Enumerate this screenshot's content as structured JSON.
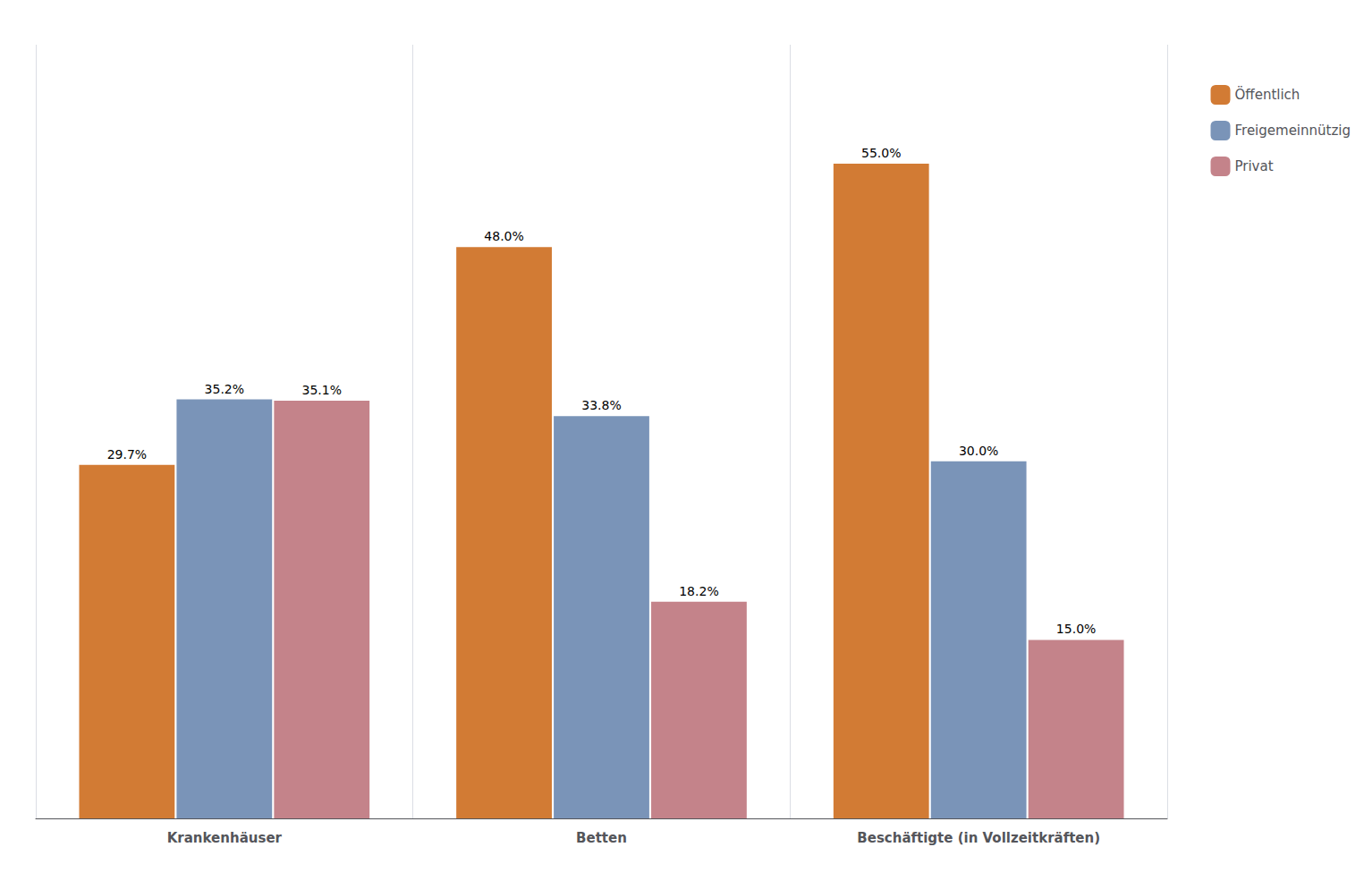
{
  "chart_data": {
    "type": "bar",
    "categories": [
      "Krankenhäuser",
      "Betten",
      "Beschäftigte (in Vollzeitkräften)"
    ],
    "series": [
      {
        "name": "Öffentlich",
        "color": "#D27B34",
        "values": [
          29.7,
          48.0,
          55.0
        ],
        "value_labels": [
          "29.7%",
          "48.0%",
          "55.0%"
        ]
      },
      {
        "name": "Freigemeinnützig",
        "color": "#7A94B8",
        "values": [
          35.2,
          33.8,
          30.0
        ],
        "value_labels": [
          "35.2%",
          "33.8%",
          "30.0%"
        ]
      },
      {
        "name": "Privat",
        "color": "#C4838A",
        "values": [
          35.1,
          18.2,
          15.0
        ],
        "value_labels": [
          "35.1%",
          "18.2%",
          "15.0%"
        ]
      }
    ],
    "ylim": [
      0,
      65
    ],
    "tick_labels": "x",
    "data_labels": true,
    "grid": "x",
    "legend": "upper right"
  }
}
